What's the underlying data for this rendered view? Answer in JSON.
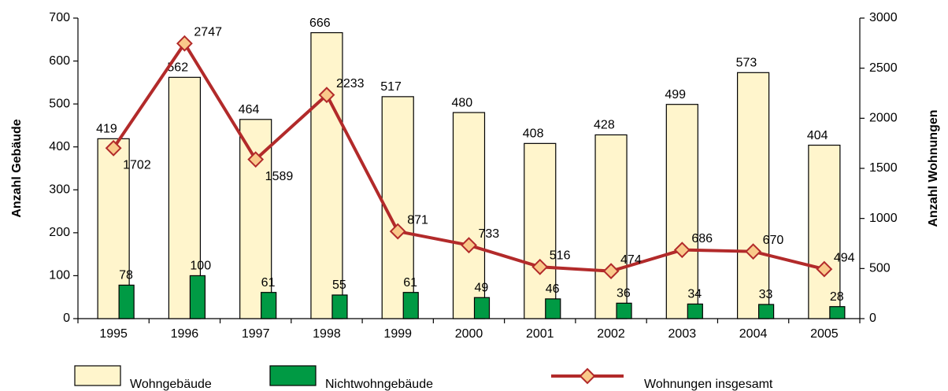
{
  "chart_data": {
    "type": "bar_line",
    "categories": [
      "1995",
      "1996",
      "1997",
      "1998",
      "1999",
      "2000",
      "2001",
      "2002",
      "2003",
      "2004",
      "2005"
    ],
    "y_label": "Anzahl Gebäude",
    "y2_label": "Anzahl Wohnungen",
    "series": [
      {
        "name": "Wohngebäude",
        "type": "bar",
        "color": "#fff5cc",
        "values": [
          419,
          562,
          464,
          666,
          517,
          480,
          408,
          428,
          499,
          573,
          404
        ]
      },
      {
        "name": "Nichtwohngebäude",
        "type": "bar",
        "color": "#009a44",
        "values": [
          78,
          100,
          61,
          55,
          61,
          49,
          46,
          36,
          34,
          33,
          28
        ]
      },
      {
        "name": "Wohnungen insgesamt",
        "type": "line",
        "axis": "y2",
        "color": "#b22a2a",
        "marker_color": "#f9c98a",
        "values": [
          1702,
          2747,
          1589,
          2233,
          871,
          733,
          516,
          474,
          686,
          670,
          494
        ]
      }
    ],
    "ylim": [
      0,
      700
    ],
    "yticks": [
      0,
      100,
      200,
      300,
      400,
      500,
      600,
      700
    ],
    "y2lim": [
      0,
      3000
    ],
    "y2ticks": [
      0,
      500,
      1000,
      1500,
      2000,
      2500,
      3000
    ],
    "legend": "bottom"
  }
}
